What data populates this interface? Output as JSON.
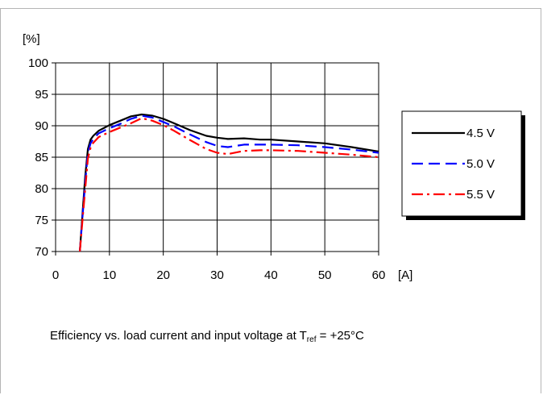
{
  "chart_data": {
    "type": "line",
    "title": "",
    "ylabel": "[%]",
    "xlabel": "[A]",
    "xlim": [
      0,
      60
    ],
    "ylim": [
      70,
      100
    ],
    "x_ticks": [
      0,
      10,
      20,
      30,
      40,
      50,
      60
    ],
    "y_ticks": [
      70,
      75,
      80,
      85,
      90,
      95,
      100
    ],
    "grid": true,
    "legend_position": "right",
    "series": [
      {
        "name": "4.5 V",
        "color": "#000000",
        "style": "solid",
        "x": [
          4.5,
          5.0,
          5.5,
          6.0,
          6.5,
          7,
          8,
          10,
          12,
          14,
          16,
          18,
          20,
          22,
          25,
          28,
          30,
          32,
          35,
          38,
          40,
          45,
          50,
          55,
          60
        ],
        "y": [
          70.0,
          76.0,
          82.0,
          86.3,
          87.8,
          88.4,
          89.2,
          90.1,
          90.8,
          91.5,
          91.8,
          91.6,
          91.1,
          90.4,
          89.3,
          88.4,
          88.1,
          87.9,
          88.0,
          87.8,
          87.8,
          87.5,
          87.2,
          86.6,
          85.9
        ]
      },
      {
        "name": "5.0 V",
        "color": "#0000ff",
        "style": "dashed",
        "x": [
          4.5,
          5.0,
          5.5,
          6.0,
          6.5,
          7,
          8,
          10,
          12,
          14,
          16,
          18,
          20,
          22,
          25,
          28,
          30,
          32,
          35,
          38,
          40,
          45,
          50,
          55,
          60
        ],
        "y": [
          70.0,
          75.5,
          81.0,
          85.7,
          87.2,
          87.9,
          88.8,
          89.6,
          90.3,
          91.1,
          91.6,
          91.3,
          90.6,
          89.9,
          88.6,
          87.4,
          86.8,
          86.6,
          87.0,
          87.0,
          87.0,
          86.9,
          86.6,
          86.2,
          85.7
        ]
      },
      {
        "name": "5.5 V",
        "color": "#ff0000",
        "style": "dashdot",
        "x": [
          4.5,
          5.0,
          5.5,
          6.0,
          6.5,
          7,
          8,
          10,
          12,
          14,
          16,
          18,
          20,
          22,
          25,
          28,
          30,
          32,
          35,
          38,
          40,
          45,
          50,
          55,
          60
        ],
        "y": [
          70.0,
          75.0,
          80.0,
          84.8,
          86.5,
          87.3,
          88.2,
          89.0,
          89.7,
          90.4,
          91.2,
          90.8,
          90.1,
          89.2,
          87.7,
          86.3,
          85.7,
          85.5,
          86.0,
          86.1,
          86.1,
          86.0,
          85.7,
          85.4,
          85.0
        ]
      }
    ]
  },
  "caption": {
    "text_before": "Efficiency vs. load current and input voltage at T",
    "subscript": "ref",
    "text_after": " = +25°C"
  }
}
